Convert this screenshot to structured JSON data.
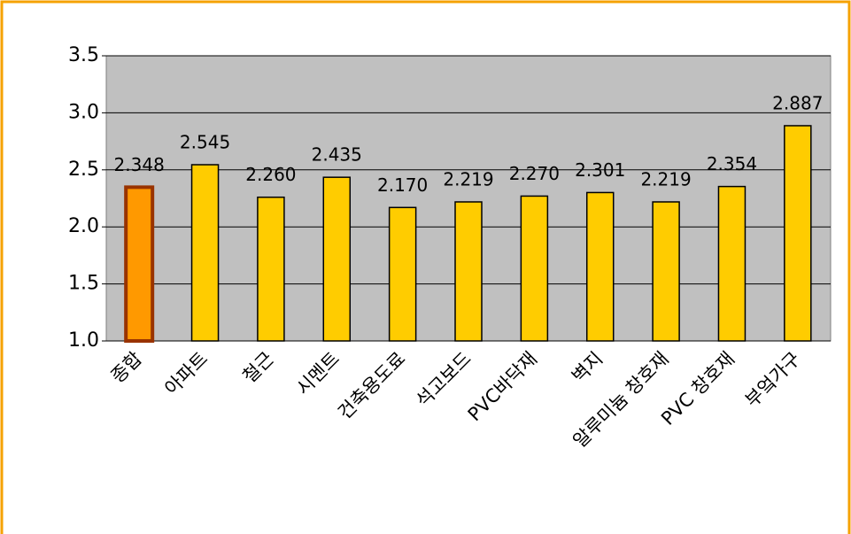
{
  "chart_data": {
    "type": "bar",
    "categories": [
      "종합",
      "아파트",
      "철근",
      "시멘트",
      "건축용도료",
      "석고보드",
      "PVC바닥재",
      "벽지",
      "알루미늄 창호재",
      "PVC 창호재",
      "부엌가구"
    ],
    "values": [
      2.348,
      2.545,
      2.26,
      2.435,
      2.17,
      2.219,
      2.27,
      2.301,
      2.219,
      2.354,
      2.887
    ],
    "value_labels": [
      "2.348",
      "2.545",
      "2.260",
      "2.435",
      "2.170",
      "2.219",
      "2.270",
      "2.301",
      "2.219",
      "2.354",
      "2.887"
    ],
    "colors": [
      "#ff9900",
      "#ffcc00",
      "#ffcc00",
      "#ffcc00",
      "#ffcc00",
      "#ffcc00",
      "#ffcc00",
      "#ffcc00",
      "#ffcc00",
      "#ffcc00",
      "#ffcc00"
    ],
    "ylim": [
      1.0,
      3.5
    ],
    "yticks": [
      {
        "value": 1.0,
        "label": "1.0"
      },
      1.5,
      {
        "value": 2.0,
        "label": "2.0"
      },
      2.5,
      {
        "value": 3.0,
        "label": "3.0"
      },
      3.5
    ],
    "grid": true
  }
}
